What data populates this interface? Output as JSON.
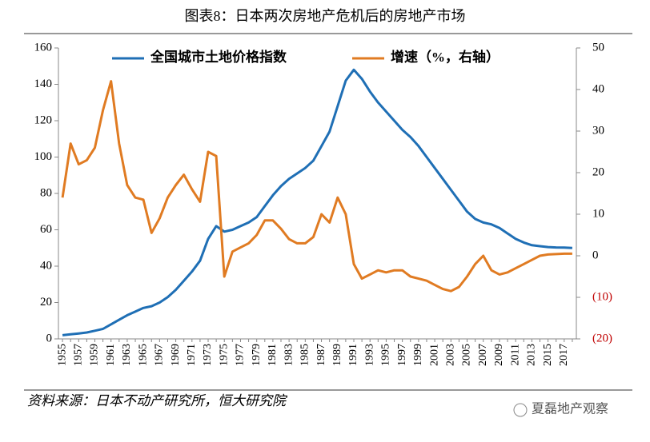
{
  "chart_data": {
    "type": "line",
    "title": "图表8：日本两次房地产危机后的房地产市场",
    "source": "资料来源：日本不动产研究所，恒大研究院",
    "watermark": "夏磊地产观察",
    "categories": [
      "1955",
      null,
      "1957",
      null,
      "1959",
      null,
      "1961",
      null,
      "1963",
      null,
      "1965",
      null,
      "1967",
      null,
      "1969",
      null,
      "1971",
      null,
      "1973",
      null,
      "1975",
      null,
      "1977",
      null,
      "1979",
      null,
      "1981",
      null,
      "1983",
      null,
      "1985",
      null,
      "1987",
      null,
      "1989",
      null,
      "1991",
      null,
      "1993",
      null,
      "1995",
      null,
      "1997",
      null,
      "1999",
      null,
      "2001",
      null,
      "2003",
      null,
      "2005",
      null,
      "2007",
      null,
      "2009",
      null,
      "2011",
      null,
      "2013",
      null,
      "2015",
      null,
      "2017",
      null
    ],
    "series": [
      {
        "name": "全国城市土地价格指数",
        "color": "#1f6fb5",
        "values": [
          2,
          2.5,
          3,
          3.5,
          4.5,
          5.5,
          8,
          10.5,
          13,
          15,
          17,
          18,
          20,
          23,
          27,
          32,
          37,
          43,
          55,
          62,
          59,
          60,
          62,
          64,
          67,
          73,
          79,
          84,
          88,
          91,
          94,
          98,
          106,
          114,
          128,
          142,
          148,
          143,
          136,
          130,
          125,
          120,
          115,
          111,
          106,
          100,
          94,
          88,
          82,
          76,
          70,
          66,
          64,
          63,
          61,
          58,
          55,
          53,
          51.5,
          51,
          50.5,
          50.3,
          50.2,
          50
        ]
      },
      {
        "name": "增速（%，右轴）",
        "color": "#e07b22",
        "axis": "y2",
        "values": [
          14,
          27,
          22,
          23,
          26,
          35,
          42,
          27,
          17,
          14,
          13.5,
          5.5,
          9,
          14,
          17,
          19.5,
          16,
          13,
          25,
          24,
          -5,
          1,
          2,
          3,
          5,
          8.5,
          8.5,
          6.5,
          4,
          3,
          3,
          4.5,
          10,
          8,
          14,
          10,
          -2,
          -5.5,
          -4.5,
          -3.5,
          -4,
          -3.5,
          -3.5,
          -5,
          -5.5,
          -6,
          -7,
          -8,
          -8.5,
          -7.5,
          -5,
          -2,
          0,
          -3.5,
          -4.5,
          -4,
          -3,
          -2,
          -1,
          0,
          0.3,
          0.4,
          0.5,
          0.5
        ]
      }
    ],
    "ylim": [
      0,
      160
    ],
    "yticks": [
      0,
      20,
      40,
      60,
      80,
      100,
      120,
      140,
      160
    ],
    "y2lim": [
      -20,
      50
    ],
    "y2ticks": [
      {
        "value": -20,
        "label": "(20)"
      },
      {
        "value": -10,
        "label": "(10)"
      },
      0,
      10,
      20,
      30,
      40,
      50
    ],
    "y2_negative_tick_color": "#c00000",
    "legend": "top"
  }
}
